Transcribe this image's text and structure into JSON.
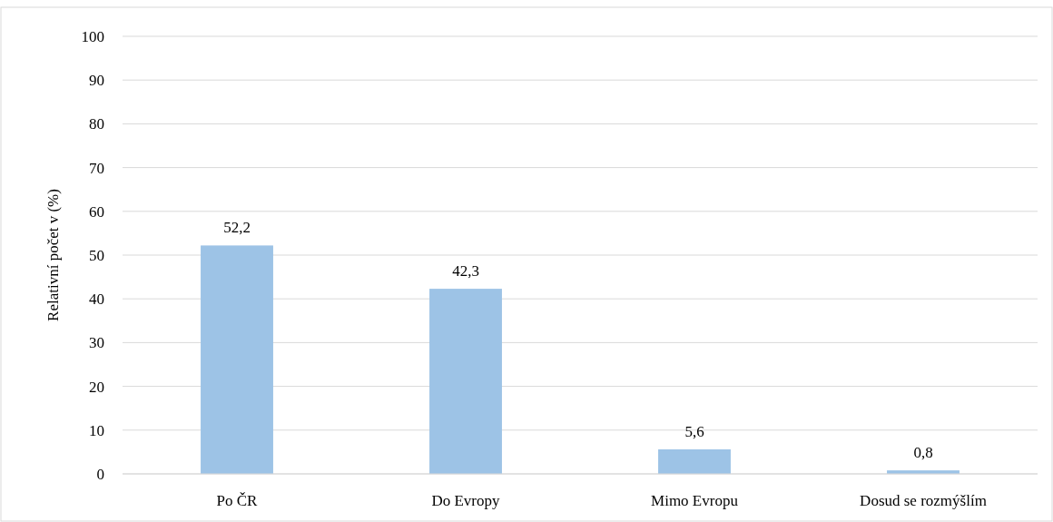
{
  "chart_data": {
    "type": "bar",
    "ylabel": "Relativní  počet v (%)",
    "categories": [
      "Po ČR",
      "Do Evropy",
      "Mimo Evropu",
      "Dosud se rozmýšlím"
    ],
    "values": [
      52.2,
      42.3,
      5.6,
      0.8
    ],
    "value_labels": [
      "52,2",
      "42,3",
      "5,6",
      "0,8"
    ],
    "color": "#9dc3e6",
    "ylim": [
      0,
      100
    ],
    "yticks": [
      0,
      10,
      20,
      30,
      40,
      50,
      60,
      70,
      80,
      90,
      100
    ],
    "grid": "y"
  }
}
